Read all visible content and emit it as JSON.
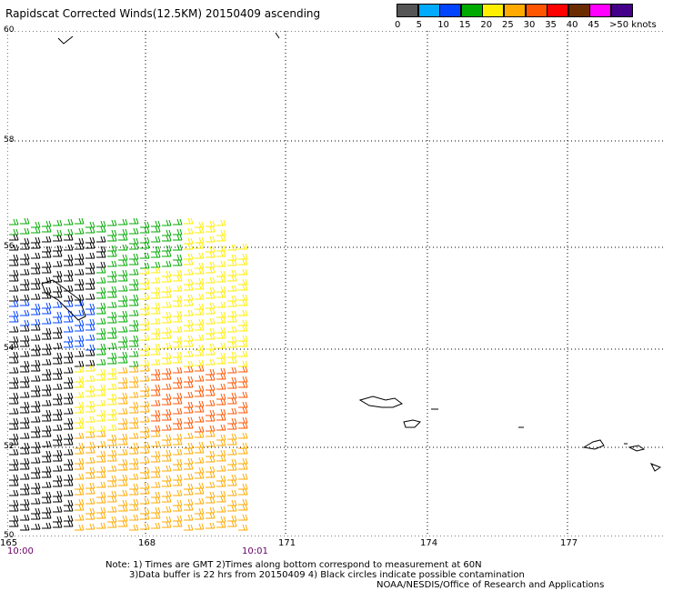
{
  "title": "Rapidscat Corrected Winds(12.5KM) 20150409 ascending",
  "legend": {
    "colors": [
      "#555555",
      "#00aaff",
      "#0044ff",
      "#00aa00",
      "#ffee00",
      "#ffaa00",
      "#ff5500",
      "#ff0000",
      "#6b2b00",
      "#ff00ff",
      "#440088"
    ],
    "labels": [
      "0",
      "5",
      "10",
      "15",
      "20",
      "25",
      "30",
      "35",
      "40",
      "45",
      ">50 knots"
    ]
  },
  "axes": {
    "lat_labels": [
      "60",
      "58",
      "56",
      "54",
      "52",
      "50"
    ],
    "lon_labels": [
      "165",
      "168",
      "171",
      "174",
      "177"
    ],
    "time_left": "10:00",
    "time_right": "10:01"
  },
  "notes": {
    "line1": "Note: 1) Times are GMT 2)Times along bottom correspond to measurement at 60N",
    "line2": "3)Data buffer is 22 hrs from 20150409 4) Black circles indicate possible contamination",
    "line3": "NOAA/NESDIS/Office of Research and Applications"
  }
}
